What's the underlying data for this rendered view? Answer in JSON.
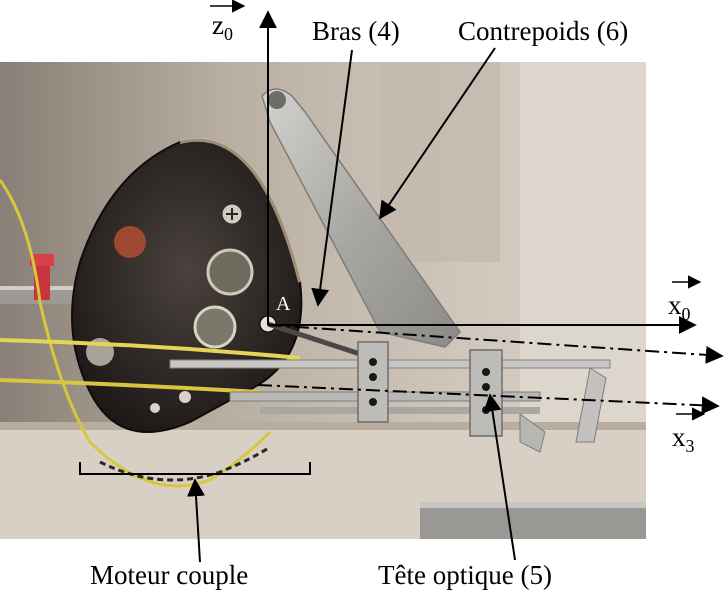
{
  "labels": {
    "bras": "Bras (4)",
    "contrepoids": "Contrepoids (6)",
    "moteur": "Moteur couple",
    "tete": "Tête optique (5)",
    "point_a": "A"
  },
  "axes": {
    "z0": {
      "letter": "z",
      "sub": "0"
    },
    "x0": {
      "letter": "x",
      "sub": "0"
    },
    "x3": {
      "letter": "x",
      "sub": "3"
    }
  },
  "colors": {
    "background": "#ffffff",
    "ink": "#000000",
    "motor_body": "#2a2523",
    "metal": "#b8b6b2",
    "wire_yellow": "#d8c73a",
    "wire_red": "#c8343a"
  }
}
